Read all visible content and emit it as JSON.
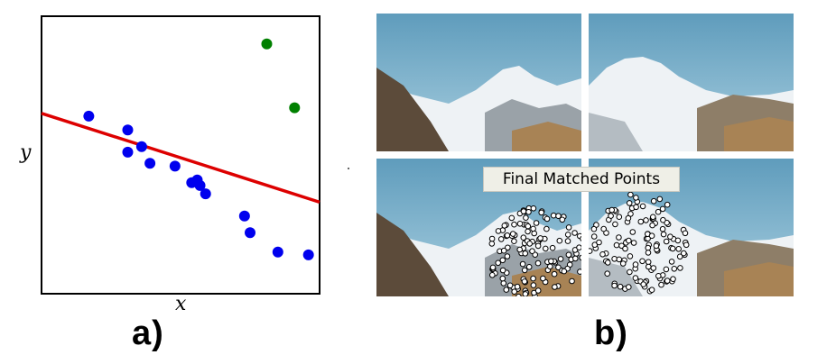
{
  "panel_a": {
    "caption": "a)",
    "x_label": "x",
    "y_label": "y",
    "chart_data": {
      "type": "scatter",
      "title": "",
      "xlabel": "x",
      "ylabel": "y",
      "xlim": [
        0,
        10
      ],
      "ylim": [
        0,
        10
      ],
      "grid": false,
      "series": [
        {
          "color": "#0000ee",
          "points": [
            [
              1.7,
              6.4
            ],
            [
              3.1,
              5.9
            ],
            [
              3.1,
              5.1
            ],
            [
              3.6,
              5.3
            ],
            [
              3.9,
              4.7
            ],
            [
              4.8,
              4.6
            ],
            [
              5.4,
              4.0
            ],
            [
              5.6,
              4.1
            ],
            [
              5.7,
              3.9
            ],
            [
              5.9,
              3.6
            ],
            [
              7.3,
              2.8
            ],
            [
              7.5,
              2.2
            ],
            [
              8.5,
              1.5
            ],
            [
              9.6,
              1.4
            ]
          ]
        },
        {
          "color": "#008000",
          "points": [
            [
              8.1,
              9.0
            ],
            [
              9.1,
              6.7
            ]
          ]
        }
      ],
      "fit_line": {
        "color": "#dd0000",
        "from": [
          0,
          6.5
        ],
        "to": [
          10,
          3.3
        ]
      }
    }
  },
  "panel_b": {
    "caption": "b)",
    "overlay_text": "Final Matched Points",
    "sky_color": "#7fb3cc",
    "snow_color": "#f2f4f6",
    "rock_color": "#7a6a55",
    "match_marker_color": "#ffffff"
  }
}
